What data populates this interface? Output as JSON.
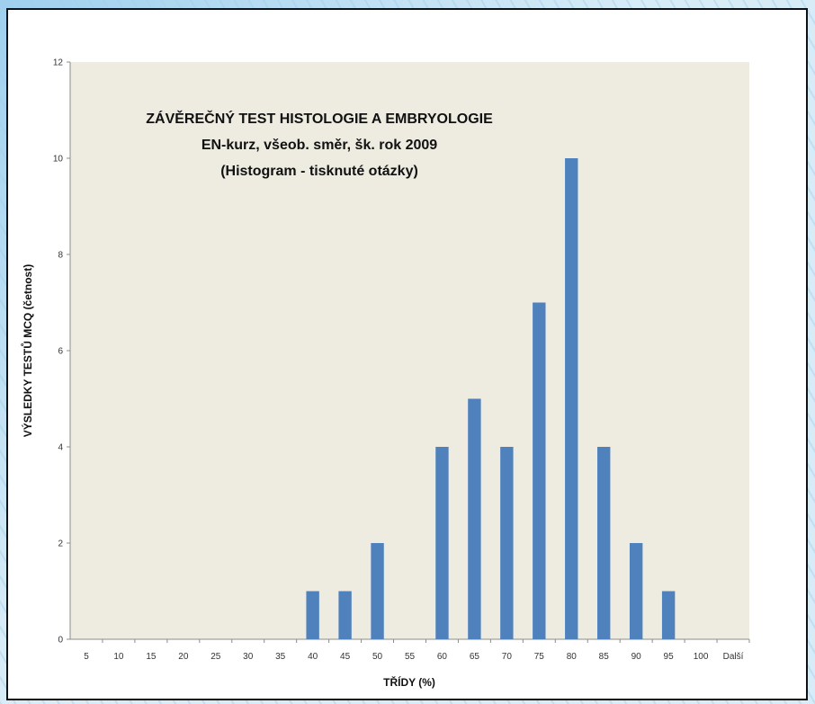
{
  "chart_data": {
    "type": "bar",
    "title": [
      "ZÁVĚREČNÝ TEST HISTOLOGIE A EMBRYOLOGIE",
      "EN-kurz, všeob. směr, šk. rok 2009",
      "(Histogram - tisknuté otázky)"
    ],
    "xlabel": "TŘÍDY  (%)",
    "ylabel": "VÝSLEDKY TESTŮ MCQ   (četnost)",
    "categories": [
      "5",
      "10",
      "15",
      "20",
      "25",
      "30",
      "35",
      "40",
      "45",
      "50",
      "55",
      "60",
      "65",
      "70",
      "75",
      "80",
      "85",
      "90",
      "95",
      "100",
      "Další"
    ],
    "values": [
      0,
      0,
      0,
      0,
      0,
      0,
      0,
      1,
      1,
      2,
      0,
      4,
      5,
      4,
      7,
      10,
      4,
      2,
      1,
      0,
      0
    ],
    "ylim": [
      0,
      12
    ],
    "yticks": [
      0,
      2,
      4,
      6,
      8,
      10,
      12
    ],
    "grid": false,
    "plot_area_color": "#eeece1",
    "bar_color": "#4f81bd"
  }
}
